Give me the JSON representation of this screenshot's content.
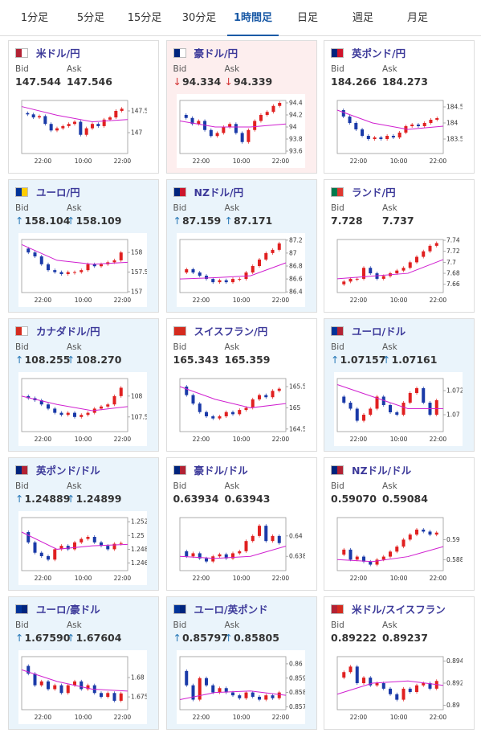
{
  "tabs": [
    "1分足",
    "5分足",
    "15分足",
    "30分足",
    "1時間足",
    "日足",
    "週足",
    "月足"
  ],
  "active_tab": 4,
  "labels": {
    "bid": "Bid",
    "ask": "Ask"
  },
  "chart_xlabels": [
    "22:00",
    "10:00",
    "22:00"
  ],
  "tiles": [
    {
      "name": "米ドル/円",
      "bid": "147.544",
      "ask": "147.546",
      "bg": "#ffffff",
      "flag": [
        "#b22234",
        "#ffffff"
      ],
      "chart": {
        "ylim": [
          146.52,
          147.74
        ],
        "yticks": [
          147.5,
          147
        ],
        "values": [
          147.45,
          147.42,
          147.35,
          147.38,
          147.2,
          147.05,
          147.1,
          147.15,
          147.2,
          147.25,
          146.95,
          147.1,
          147.2,
          147.15,
          147.3,
          147.35,
          147.5,
          147.55
        ],
        "ma": [
          147.6,
          147.4,
          147.25,
          147.3
        ]
      }
    },
    {
      "name": "豪ドル/円",
      "arrow": "↓",
      "arrow_color": "#d33333",
      "bid": "94.334",
      "ask": "94.339",
      "bg": "#fdeeee",
      "flag": [
        "#00247d",
        "#ffffff"
      ],
      "chart": {
        "ylim": [
          93.56,
          94.44
        ],
        "yticks": [
          94.4,
          94.2,
          94,
          93.8,
          93.6
        ],
        "values": [
          94.2,
          94.15,
          94.05,
          94.1,
          93.95,
          93.85,
          93.9,
          94.0,
          94.05,
          93.9,
          93.75,
          93.95,
          94.1,
          94.2,
          94.25,
          94.35,
          94.4
        ],
        "ma": [
          94.1,
          94.0,
          94.0,
          94.05
        ]
      }
    },
    {
      "name": "英ポンド/円",
      "bid": "184.266",
      "ask": "184.273",
      "bg": "#ffffff",
      "flag": [
        "#00247d",
        "#cf142b"
      ],
      "chart": {
        "ylim": [
          183.05,
          184.7
        ],
        "yticks": [
          184.5,
          184,
          183.5
        ],
        "values": [
          184.4,
          184.2,
          184.0,
          183.8,
          183.6,
          183.5,
          183.55,
          183.5,
          183.6,
          183.55,
          183.7,
          183.9,
          183.95,
          183.9,
          184.0,
          184.1,
          184.15
        ],
        "ma": [
          184.4,
          184.0,
          183.8,
          183.9
        ]
      }
    },
    {
      "name": "ユーロ/円",
      "arrow": "↑",
      "arrow_color": "#2a7ab8",
      "bid": "158.104",
      "ask": "158.109",
      "bg": "#eaf4fb",
      "flag": [
        "#003399",
        "#ffcc00"
      ],
      "chart": {
        "ylim": [
          156.98,
          158.33
        ],
        "yticks": [
          158,
          157.5,
          157
        ],
        "values": [
          158.1,
          158.0,
          157.9,
          157.7,
          157.55,
          157.5,
          157.45,
          157.5,
          157.5,
          157.55,
          157.7,
          157.65,
          157.7,
          157.75,
          157.8,
          158.0
        ],
        "ma": [
          158.2,
          157.8,
          157.7,
          157.75
        ]
      }
    },
    {
      "name": "NZドル/円",
      "arrow": "↑",
      "arrow_color": "#2a7ab8",
      "bid": "87.159",
      "ask": "87.171",
      "bg": "#eaf4fb",
      "flag": [
        "#00247d",
        "#cc142b"
      ],
      "chart": {
        "ylim": [
          86.39,
          87.21
        ],
        "yticks": [
          87.2,
          87,
          86.8,
          86.6,
          86.4
        ],
        "values": [
          86.7,
          86.75,
          86.7,
          86.65,
          86.6,
          86.55,
          86.58,
          86.55,
          86.6,
          86.6,
          86.7,
          86.8,
          86.9,
          87.0,
          87.05,
          87.15
        ],
        "ma": [
          86.6,
          86.62,
          86.65,
          86.85
        ]
      }
    },
    {
      "name": "ランド/円",
      "bid": "7.728",
      "ask": "7.737",
      "bg": "#ffffff",
      "flag": [
        "#007a4d",
        "#de3831"
      ],
      "chart": {
        "ylim": [
          7.645,
          7.7415
        ],
        "yticks": [
          7.74,
          7.72,
          7.7,
          7.68,
          7.66
        ],
        "values": [
          7.66,
          7.665,
          7.67,
          7.67,
          7.69,
          7.68,
          7.67,
          7.675,
          7.68,
          7.685,
          7.69,
          7.7,
          7.71,
          7.72,
          7.73,
          7.735
        ],
        "ma": [
          7.67,
          7.675,
          7.68,
          7.705
        ]
      }
    },
    {
      "name": "カナダドル/円",
      "arrow": "↑",
      "arrow_color": "#2a7ab8",
      "bid": "108.255",
      "ask": "108.270",
      "bg": "#eaf4fb",
      "flag": [
        "#d52b1e",
        "#ffffff"
      ],
      "chart": {
        "ylim": [
          107.15,
          108.42
        ],
        "yticks": [
          108,
          107.5
        ],
        "values": [
          108.0,
          107.95,
          107.9,
          107.8,
          107.7,
          107.6,
          107.55,
          107.6,
          107.5,
          107.55,
          107.6,
          107.7,
          107.75,
          107.8,
          108.0,
          108.2
        ],
        "ma": [
          108.0,
          107.8,
          107.65,
          107.75
        ]
      }
    },
    {
      "name": "スイスフラン/円",
      "bid": "165.343",
      "ask": "165.359",
      "bg": "#ffffff",
      "flag": [
        "#d52b1e",
        "#d52b1e"
      ],
      "chart": {
        "ylim": [
          164.44,
          165.69
        ],
        "yticks": [
          165.5,
          165,
          164.5
        ],
        "values": [
          165.5,
          165.3,
          165.1,
          164.9,
          164.8,
          164.75,
          164.8,
          164.9,
          164.85,
          164.95,
          165.0,
          165.2,
          165.3,
          165.25,
          165.4,
          165.45
        ],
        "ma": [
          165.5,
          165.2,
          165.0,
          165.1
        ]
      }
    },
    {
      "name": "ユーロ/ドル",
      "arrow": "↑",
      "arrow_color": "#2a7ab8",
      "bid": "1.07157",
      "ask": "1.07161",
      "bg": "#eaf4fb",
      "flag": [
        "#003399",
        "#b22234"
      ],
      "chart": {
        "ylim": [
          1.0686,
          1.073
        ],
        "yticks": [
          1.072,
          1.07
        ],
        "values": [
          1.0715,
          1.071,
          1.0705,
          1.0695,
          1.07,
          1.0705,
          1.0715,
          1.0708,
          1.0702,
          1.07,
          1.071,
          1.0718,
          1.0722,
          1.071,
          1.07,
          1.0712
        ],
        "ma": [
          1.0725,
          1.0715,
          1.0705,
          1.0705
        ]
      }
    },
    {
      "name": "英ポンド/ドル",
      "arrow": "↑",
      "arrow_color": "#2a7ab8",
      "bid": "1.24889",
      "ask": "1.24899",
      "bg": "#eaf4fb",
      "flag": [
        "#00247d",
        "#b22234"
      ],
      "chart": {
        "ylim": [
          1.2449,
          1.2526
        ],
        "yticks": [
          1.252,
          1.25,
          1.248,
          1.246
        ],
        "values": [
          1.2505,
          1.249,
          1.2475,
          1.247,
          1.2465,
          1.248,
          1.2485,
          1.248,
          1.249,
          1.2495,
          1.2498,
          1.249,
          1.2485,
          1.248,
          1.2488,
          1.2489
        ],
        "ma": [
          1.2505,
          1.248,
          1.2485,
          1.2487
        ]
      }
    },
    {
      "name": "豪ドル/ドル",
      "bid": "0.63934",
      "ask": "0.63943",
      "bg": "#ffffff",
      "flag": [
        "#00247d",
        "#b22234"
      ],
      "chart": {
        "ylim": [
          0.6366,
          0.6418
        ],
        "yticks": [
          0.64,
          0.638
        ],
        "values": [
          0.6385,
          0.638,
          0.6383,
          0.6378,
          0.6375,
          0.638,
          0.6382,
          0.6378,
          0.6383,
          0.6385,
          0.6395,
          0.64,
          0.641,
          0.6395,
          0.64,
          0.6393
        ],
        "ma": [
          0.638,
          0.6378,
          0.638,
          0.639
        ]
      }
    },
    {
      "name": "NZドル/ドル",
      "bid": "0.59070",
      "ask": "0.59084",
      "bg": "#ffffff",
      "flag": [
        "#00247d",
        "#b22234"
      ],
      "chart": {
        "ylim": [
          0.5869,
          0.5922
        ],
        "yticks": [
          0.59,
          0.588
        ],
        "values": [
          0.5885,
          0.589,
          0.588,
          0.5883,
          0.5878,
          0.5875,
          0.588,
          0.5883,
          0.5888,
          0.5893,
          0.59,
          0.5905,
          0.591,
          0.5908,
          0.5905,
          0.5907
        ],
        "ma": [
          0.588,
          0.5878,
          0.5883,
          0.5893
        ]
      }
    },
    {
      "name": "ユーロ/豪ドル",
      "arrow": "↑",
      "arrow_color": "#2a7ab8",
      "bid": "1.67590",
      "ask": "1.67604",
      "bg": "#eaf4fb",
      "flag": [
        "#003399",
        "#00247d"
      ],
      "chart": {
        "ylim": [
          1.6717,
          1.6854
        ],
        "yticks": [
          1.68,
          1.675
        ],
        "values": [
          1.683,
          1.681,
          1.678,
          1.679,
          1.677,
          1.678,
          1.676,
          1.678,
          1.679,
          1.677,
          1.678,
          1.676,
          1.675,
          1.676,
          1.674,
          1.6759
        ],
        "ma": [
          1.682,
          1.679,
          1.677,
          1.6765
        ]
      }
    },
    {
      "name": "ユーロ/英ポンド",
      "arrow": "↑",
      "arrow_color": "#2a7ab8",
      "bid": "0.85797",
      "ask": "0.85805",
      "bg": "#eaf4fb",
      "flag": [
        "#003399",
        "#00247d"
      ],
      "chart": {
        "ylim": [
          0.8568,
          0.8605
        ],
        "yticks": [
          0.86,
          0.859,
          0.858,
          0.857
        ],
        "values": [
          0.8595,
          0.8585,
          0.8575,
          0.859,
          0.8585,
          0.858,
          0.8583,
          0.858,
          0.8578,
          0.8576,
          0.858,
          0.8577,
          0.8575,
          0.8578,
          0.8576,
          0.858
        ],
        "ma": [
          0.8575,
          0.858,
          0.8581,
          0.8578
        ]
      }
    },
    {
      "name": "米ドル/スイスフラン",
      "bid": "0.89222",
      "ask": "0.89237",
      "bg": "#ffffff",
      "flag": [
        "#b22234",
        "#d52b1e"
      ],
      "chart": {
        "ylim": [
          0.8896,
          0.8944
        ],
        "yticks": [
          0.894,
          0.892,
          0.89
        ],
        "values": [
          0.8925,
          0.893,
          0.8935,
          0.892,
          0.8925,
          0.8918,
          0.892,
          0.8915,
          0.891,
          0.8905,
          0.8915,
          0.8912,
          0.8918,
          0.892,
          0.8915,
          0.8922
        ],
        "ma": [
          0.891,
          0.892,
          0.8922,
          0.8918
        ]
      }
    }
  ]
}
